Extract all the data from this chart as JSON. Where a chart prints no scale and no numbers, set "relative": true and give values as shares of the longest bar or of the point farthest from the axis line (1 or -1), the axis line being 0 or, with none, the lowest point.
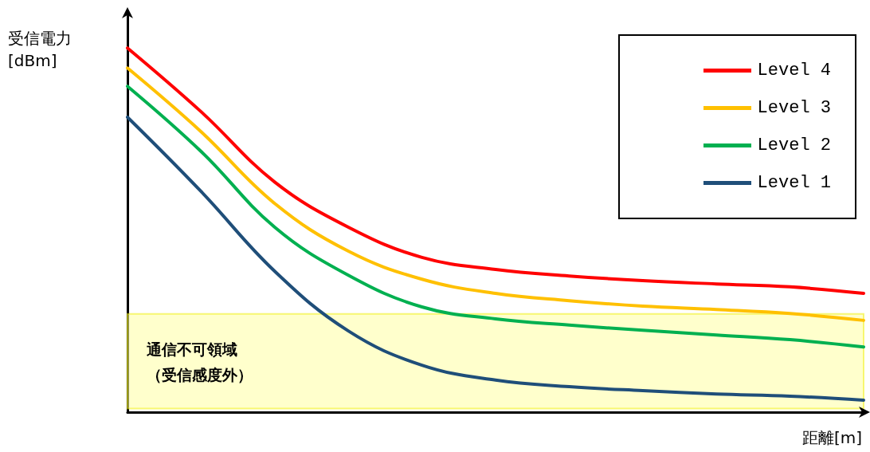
{
  "chart_data": {
    "type": "line",
    "relative": true,
    "ylabel": "受信電力\n[dBm]",
    "xlabel": "距離[m]",
    "categories": [
      null,
      null,
      null,
      null,
      null,
      null,
      null,
      null,
      null,
      null,
      null
    ],
    "series": [
      {
        "name": "Level 4",
        "color": "#ff0000",
        "values": [
          1,
          0.825,
          0.632,
          0.508,
          0.425,
          0.392,
          0.374,
          0.361,
          0.352,
          0.344,
          0.326
        ]
      },
      {
        "name": "Level 3",
        "color": "#ffc000",
        "values": [
          0.945,
          0.77,
          0.573,
          0.442,
          0.365,
          0.326,
          0.306,
          0.291,
          0.282,
          0.271,
          0.252
        ]
      },
      {
        "name": "Level 2",
        "color": "#00b050",
        "values": [
          0.895,
          0.716,
          0.508,
          0.376,
          0.289,
          0.256,
          0.239,
          0.225,
          0.212,
          0.199,
          0.179
        ]
      },
      {
        "name": "Level 1",
        "color": "#1f4e79",
        "values": [
          0.81,
          0.606,
          0.387,
          0.223,
          0.129,
          0.088,
          0.07,
          0.059,
          0.05,
          0.044,
          0.033
        ]
      }
    ],
    "bands": [
      {
        "axis": "y",
        "from": 0.01,
        "to": 0.27,
        "label": "通信不可領域（受信感度外）",
        "color": "#ffff99"
      }
    ],
    "legend": "top right",
    "marker": "none",
    "line_style": "solid",
    "grid": false
  }
}
